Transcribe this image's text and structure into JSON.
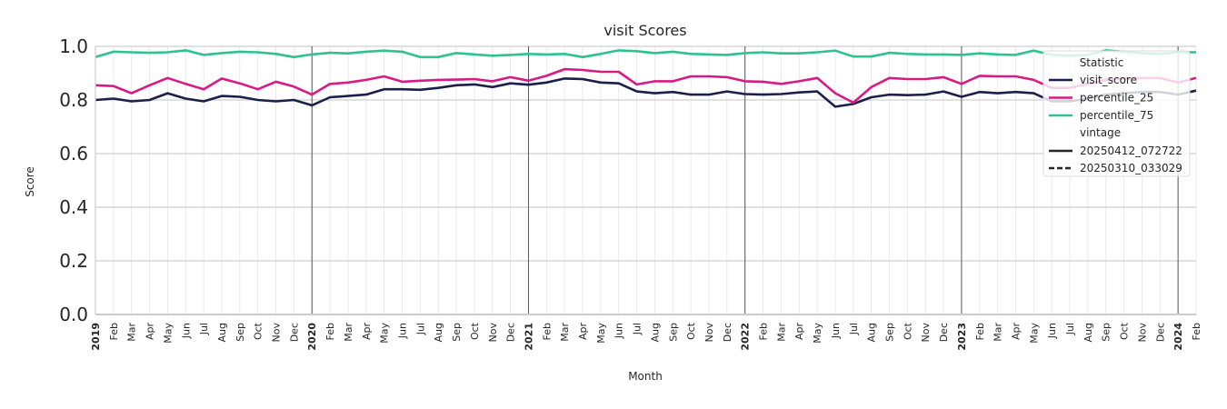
{
  "chart_data": {
    "type": "line",
    "title": "visit Scores",
    "xlabel": "Month",
    "ylabel": "Score",
    "ylim": [
      0.0,
      1.0
    ],
    "yticks": [
      "0.0",
      "0.2",
      "0.4",
      "0.6",
      "0.8",
      "1.0"
    ],
    "grid": true,
    "legend_position": "top-right",
    "x_tick_labels": [
      "2019",
      "Feb",
      "Mar",
      "Apr",
      "May",
      "Jun",
      "Jul",
      "Aug",
      "Sep",
      "Oct",
      "Nov",
      "Dec",
      "2020",
      "Feb",
      "Mar",
      "Apr",
      "May",
      "Jun",
      "Jul",
      "Aug",
      "Sep",
      "Oct",
      "Nov",
      "Dec",
      "2021",
      "Feb",
      "Mar",
      "Apr",
      "May",
      "Jun",
      "Jul",
      "Aug",
      "Sep",
      "Oct",
      "Nov",
      "Dec",
      "2022",
      "Feb",
      "Mar",
      "Apr",
      "May",
      "Jun",
      "Jul",
      "Aug",
      "Sep",
      "Oct",
      "Nov",
      "Dec",
      "2023",
      "Feb",
      "Mar",
      "Apr",
      "May",
      "Jun",
      "Jul",
      "Aug",
      "Sep",
      "Oct",
      "Nov",
      "Dec",
      "2024",
      "Feb"
    ],
    "legend": {
      "statistic_title": "Statistic",
      "vintage_title": "vintage",
      "statistics": [
        {
          "name": "visit_score",
          "color": "#1b1f4b"
        },
        {
          "name": "percentile_25",
          "color": "#d81b84"
        },
        {
          "name": "percentile_75",
          "color": "#2ec28f"
        }
      ],
      "vintages": [
        {
          "name": "20250412_072722",
          "style": "solid"
        },
        {
          "name": "20250310_033029",
          "style": "dashed"
        }
      ]
    },
    "series": [
      {
        "name": "visit_score",
        "color": "#1b1f4b",
        "values": [
          0.8,
          0.805,
          0.795,
          0.8,
          0.825,
          0.805,
          0.795,
          0.815,
          0.812,
          0.8,
          0.795,
          0.8,
          0.78,
          0.81,
          0.815,
          0.82,
          0.84,
          0.84,
          0.838,
          0.845,
          0.855,
          0.858,
          0.848,
          0.862,
          0.857,
          0.865,
          0.88,
          0.878,
          0.865,
          0.862,
          0.832,
          0.825,
          0.83,
          0.82,
          0.82,
          0.832,
          0.822,
          0.82,
          0.822,
          0.828,
          0.832,
          0.775,
          0.785,
          0.81,
          0.82,
          0.818,
          0.82,
          0.832,
          0.812,
          0.83,
          0.825,
          0.83,
          0.825,
          0.795,
          0.795,
          0.805,
          0.82,
          0.825,
          0.83,
          0.83,
          0.82,
          0.835
        ]
      },
      {
        "name": "percentile_25",
        "color": "#d81b84",
        "values": [
          0.855,
          0.852,
          0.825,
          0.855,
          0.882,
          0.86,
          0.84,
          0.88,
          0.862,
          0.84,
          0.868,
          0.85,
          0.82,
          0.86,
          0.865,
          0.875,
          0.888,
          0.868,
          0.872,
          0.875,
          0.876,
          0.878,
          0.87,
          0.885,
          0.872,
          0.89,
          0.915,
          0.912,
          0.905,
          0.905,
          0.858,
          0.87,
          0.87,
          0.888,
          0.888,
          0.885,
          0.87,
          0.868,
          0.86,
          0.87,
          0.882,
          0.825,
          0.79,
          0.848,
          0.882,
          0.878,
          0.878,
          0.885,
          0.86,
          0.89,
          0.888,
          0.888,
          0.875,
          0.845,
          0.845,
          0.86,
          0.875,
          0.88,
          0.882,
          0.882,
          0.865,
          0.882
        ]
      },
      {
        "name": "percentile_75",
        "color": "#2ec28f",
        "values": [
          0.96,
          0.98,
          0.978,
          0.976,
          0.978,
          0.985,
          0.968,
          0.975,
          0.98,
          0.978,
          0.972,
          0.96,
          0.97,
          0.976,
          0.974,
          0.98,
          0.984,
          0.98,
          0.96,
          0.96,
          0.975,
          0.97,
          0.965,
          0.968,
          0.972,
          0.97,
          0.972,
          0.96,
          0.972,
          0.985,
          0.982,
          0.975,
          0.98,
          0.972,
          0.97,
          0.968,
          0.975,
          0.978,
          0.974,
          0.974,
          0.978,
          0.984,
          0.962,
          0.962,
          0.976,
          0.972,
          0.97,
          0.97,
          0.968,
          0.974,
          0.97,
          0.968,
          0.984,
          0.968,
          0.965,
          0.968,
          0.985,
          0.98,
          0.975,
          0.972,
          0.978,
          0.978
        ]
      }
    ]
  }
}
